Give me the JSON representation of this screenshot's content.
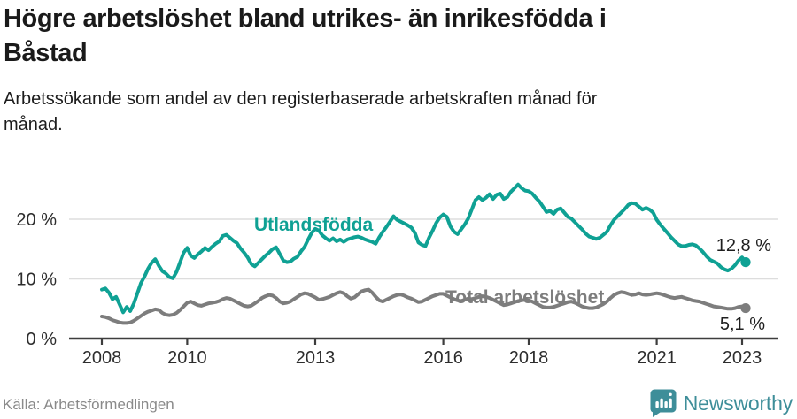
{
  "header": {
    "title_lines": [
      "Högre arbetslöshet bland utrikes- än inrikesfödda i",
      "Båstad"
    ],
    "subtitle_lines": [
      "Arbetssökande som andel av den registerbaserade arbetskraften månad för",
      "månad."
    ]
  },
  "footer": {
    "source": "Källa: Arbetsförmedlingen",
    "brand": "Newsworthy",
    "brand_icon": "newsworthy-bar-chart-bubble"
  },
  "colors": {
    "foreign_series": "#0fa194",
    "total_series": "#7d7d7d",
    "grid": "#dddddd",
    "axis": "#3d3d3d",
    "tick_text": "#2d2d2d",
    "annotation_text": "#1f1f1f",
    "brand_teal": "#3e8e99",
    "source_text": "#8a8a8a"
  },
  "chart_data": {
    "type": "line",
    "title": "Högre arbetslöshet bland utrikes- än inrikesfödda i Båstad",
    "subtitle": "Arbetssökande som andel av den registerbaserade arbetskraften månad för månad.",
    "unit": "%",
    "grid": "horizontal-only",
    "legend_position": "inline-labels",
    "x_start_year": 2008.0,
    "x_step_months": 1,
    "xlim": [
      2007.3,
      2023.85
    ],
    "ylim": [
      0,
      27
    ],
    "yticks": [
      {
        "value": 0,
        "label": "0 %"
      },
      {
        "value": 10,
        "label": "10 %"
      },
      {
        "value": 20,
        "label": "20 %"
      }
    ],
    "xticks": [
      {
        "year": 2008,
        "label": "2008"
      },
      {
        "year": 2010,
        "label": "2010"
      },
      {
        "year": 2013,
        "label": "2013"
      },
      {
        "year": 2016,
        "label": "2016"
      },
      {
        "year": 2018,
        "label": "2018"
      },
      {
        "year": 2021,
        "label": "2021"
      },
      {
        "year": 2023,
        "label": "2023"
      }
    ],
    "series": [
      {
        "id": "utlandsfodda",
        "name": "Utlandsfödda",
        "color": "#0fa194",
        "end_value": 12.8,
        "end_label": "12,8 %",
        "name_pos": {
          "x": 287,
          "y": 261
        },
        "end_label_pos": {
          "x": 871,
          "y": 284
        },
        "values": [
          8.2,
          8.4,
          7.7,
          6.6,
          7.0,
          5.7,
          4.4,
          5.3,
          4.6,
          5.9,
          7.6,
          9.3,
          10.4,
          11.7,
          12.7,
          13.3,
          12.2,
          11.3,
          10.9,
          10.3,
          10.1,
          11.2,
          12.8,
          14.4,
          15.2,
          13.9,
          13.5,
          14.1,
          14.6,
          15.2,
          14.8,
          15.4,
          15.9,
          16.3,
          17.2,
          17.4,
          16.9,
          16.4,
          16.0,
          15.1,
          14.4,
          13.6,
          12.5,
          12.1,
          12.7,
          13.3,
          13.9,
          14.4,
          15.0,
          15.3,
          14.2,
          13.1,
          12.8,
          12.9,
          13.4,
          13.7,
          14.6,
          15.4,
          16.6,
          17.7,
          18.4,
          18.1,
          17.3,
          16.8,
          16.4,
          16.8,
          16.3,
          16.6,
          16.2,
          16.6,
          16.8,
          17.0,
          17.1,
          16.9,
          16.6,
          16.4,
          16.2,
          15.9,
          17.0,
          17.9,
          18.7,
          19.6,
          20.5,
          19.9,
          19.6,
          19.3,
          19.0,
          18.6,
          17.7,
          16.1,
          15.7,
          15.5,
          16.9,
          18.1,
          19.4,
          20.3,
          20.8,
          20.4,
          18.8,
          17.9,
          17.5,
          18.3,
          19.1,
          20.1,
          21.6,
          23.2,
          23.7,
          23.2,
          23.6,
          24.2,
          23.4,
          24.1,
          24.3,
          23.4,
          23.7,
          24.6,
          25.2,
          25.8,
          25.2,
          24.8,
          24.7,
          24.3,
          23.6,
          23.0,
          22.1,
          21.2,
          21.4,
          20.9,
          21.6,
          21.8,
          21.1,
          20.4,
          20.1,
          19.5,
          18.9,
          18.3,
          17.6,
          17.1,
          16.9,
          16.7,
          16.9,
          17.4,
          17.9,
          19.0,
          19.9,
          20.5,
          21.1,
          21.7,
          22.4,
          22.7,
          22.6,
          22.1,
          21.6,
          21.9,
          21.6,
          21.1,
          19.9,
          19.1,
          18.4,
          17.7,
          17.0,
          16.4,
          15.8,
          15.5,
          15.5,
          15.7,
          15.8,
          15.6,
          15.1,
          14.5,
          13.8,
          13.2,
          12.9,
          12.6,
          12.0,
          11.6,
          11.4,
          11.7,
          12.3,
          13.1,
          13.6,
          12.8
        ]
      },
      {
        "id": "total",
        "name": "Total arbetslöshet",
        "color": "#7d7d7d",
        "end_value": 5.1,
        "end_label": "5,1 %",
        "name_pos": {
          "x": 503,
          "y": 343
        },
        "end_label_pos": {
          "x": 864,
          "y": 373
        },
        "values": [
          3.7,
          3.6,
          3.4,
          3.1,
          2.9,
          2.7,
          2.6,
          2.6,
          2.7,
          3.0,
          3.4,
          3.8,
          4.2,
          4.5,
          4.7,
          4.9,
          4.8,
          4.3,
          4.0,
          3.9,
          4.0,
          4.3,
          4.8,
          5.4,
          6.0,
          6.2,
          5.9,
          5.6,
          5.5,
          5.7,
          5.9,
          6.0,
          6.1,
          6.3,
          6.6,
          6.8,
          6.7,
          6.4,
          6.1,
          5.8,
          5.5,
          5.4,
          5.5,
          5.9,
          6.3,
          6.8,
          7.1,
          7.3,
          7.2,
          6.8,
          6.2,
          5.9,
          6.0,
          6.2,
          6.6,
          7.0,
          7.4,
          7.6,
          7.5,
          7.2,
          6.9,
          6.5,
          6.6,
          6.8,
          7.0,
          7.3,
          7.6,
          7.8,
          7.6,
          7.1,
          6.7,
          6.9,
          7.4,
          7.9,
          8.1,
          8.2,
          7.7,
          7.0,
          6.4,
          6.2,
          6.5,
          6.8,
          7.1,
          7.3,
          7.4,
          7.2,
          6.9,
          6.7,
          6.4,
          6.1,
          6.2,
          6.5,
          6.8,
          7.1,
          7.3,
          7.5,
          7.5,
          7.2,
          6.9,
          6.6,
          6.4,
          6.3,
          6.5,
          6.7,
          6.6,
          6.8,
          7.0,
          7.1,
          7.0,
          6.8,
          6.5,
          6.2,
          5.9,
          5.6,
          5.7,
          5.9,
          6.1,
          6.3,
          6.4,
          6.5,
          6.4,
          6.2,
          5.9,
          5.6,
          5.3,
          5.2,
          5.2,
          5.3,
          5.5,
          5.7,
          5.9,
          6.1,
          6.2,
          6.0,
          5.7,
          5.4,
          5.2,
          5.1,
          5.1,
          5.2,
          5.5,
          5.8,
          6.2,
          6.8,
          7.3,
          7.6,
          7.8,
          7.7,
          7.5,
          7.3,
          7.4,
          7.6,
          7.4,
          7.3,
          7.4,
          7.5,
          7.6,
          7.5,
          7.3,
          7.1,
          6.9,
          6.8,
          6.9,
          7.0,
          6.8,
          6.6,
          6.4,
          6.3,
          6.2,
          6.0,
          5.8,
          5.6,
          5.4,
          5.3,
          5.2,
          5.1,
          5.0,
          5.0,
          5.1,
          5.3,
          5.4,
          5.1
        ]
      }
    ]
  }
}
